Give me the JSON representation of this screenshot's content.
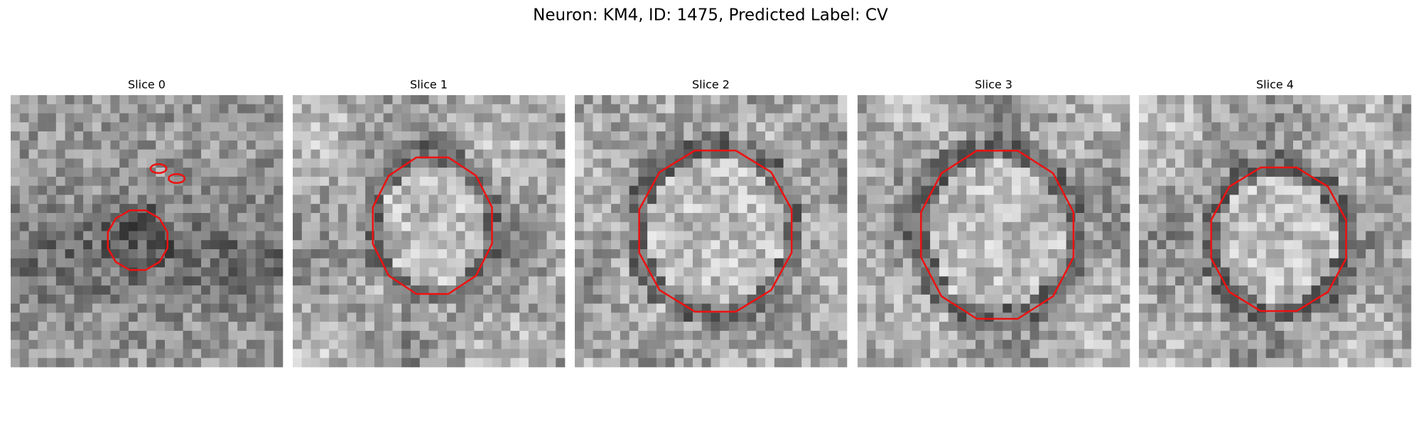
{
  "title": "Neuron: KM4, ID: 1475, Predicted Label: CV",
  "slices": [
    {
      "title": "Slice 0"
    },
    {
      "title": "Slice 1"
    },
    {
      "title": "Slice 2"
    },
    {
      "title": "Slice 3"
    },
    {
      "title": "Slice 4"
    }
  ]
}
